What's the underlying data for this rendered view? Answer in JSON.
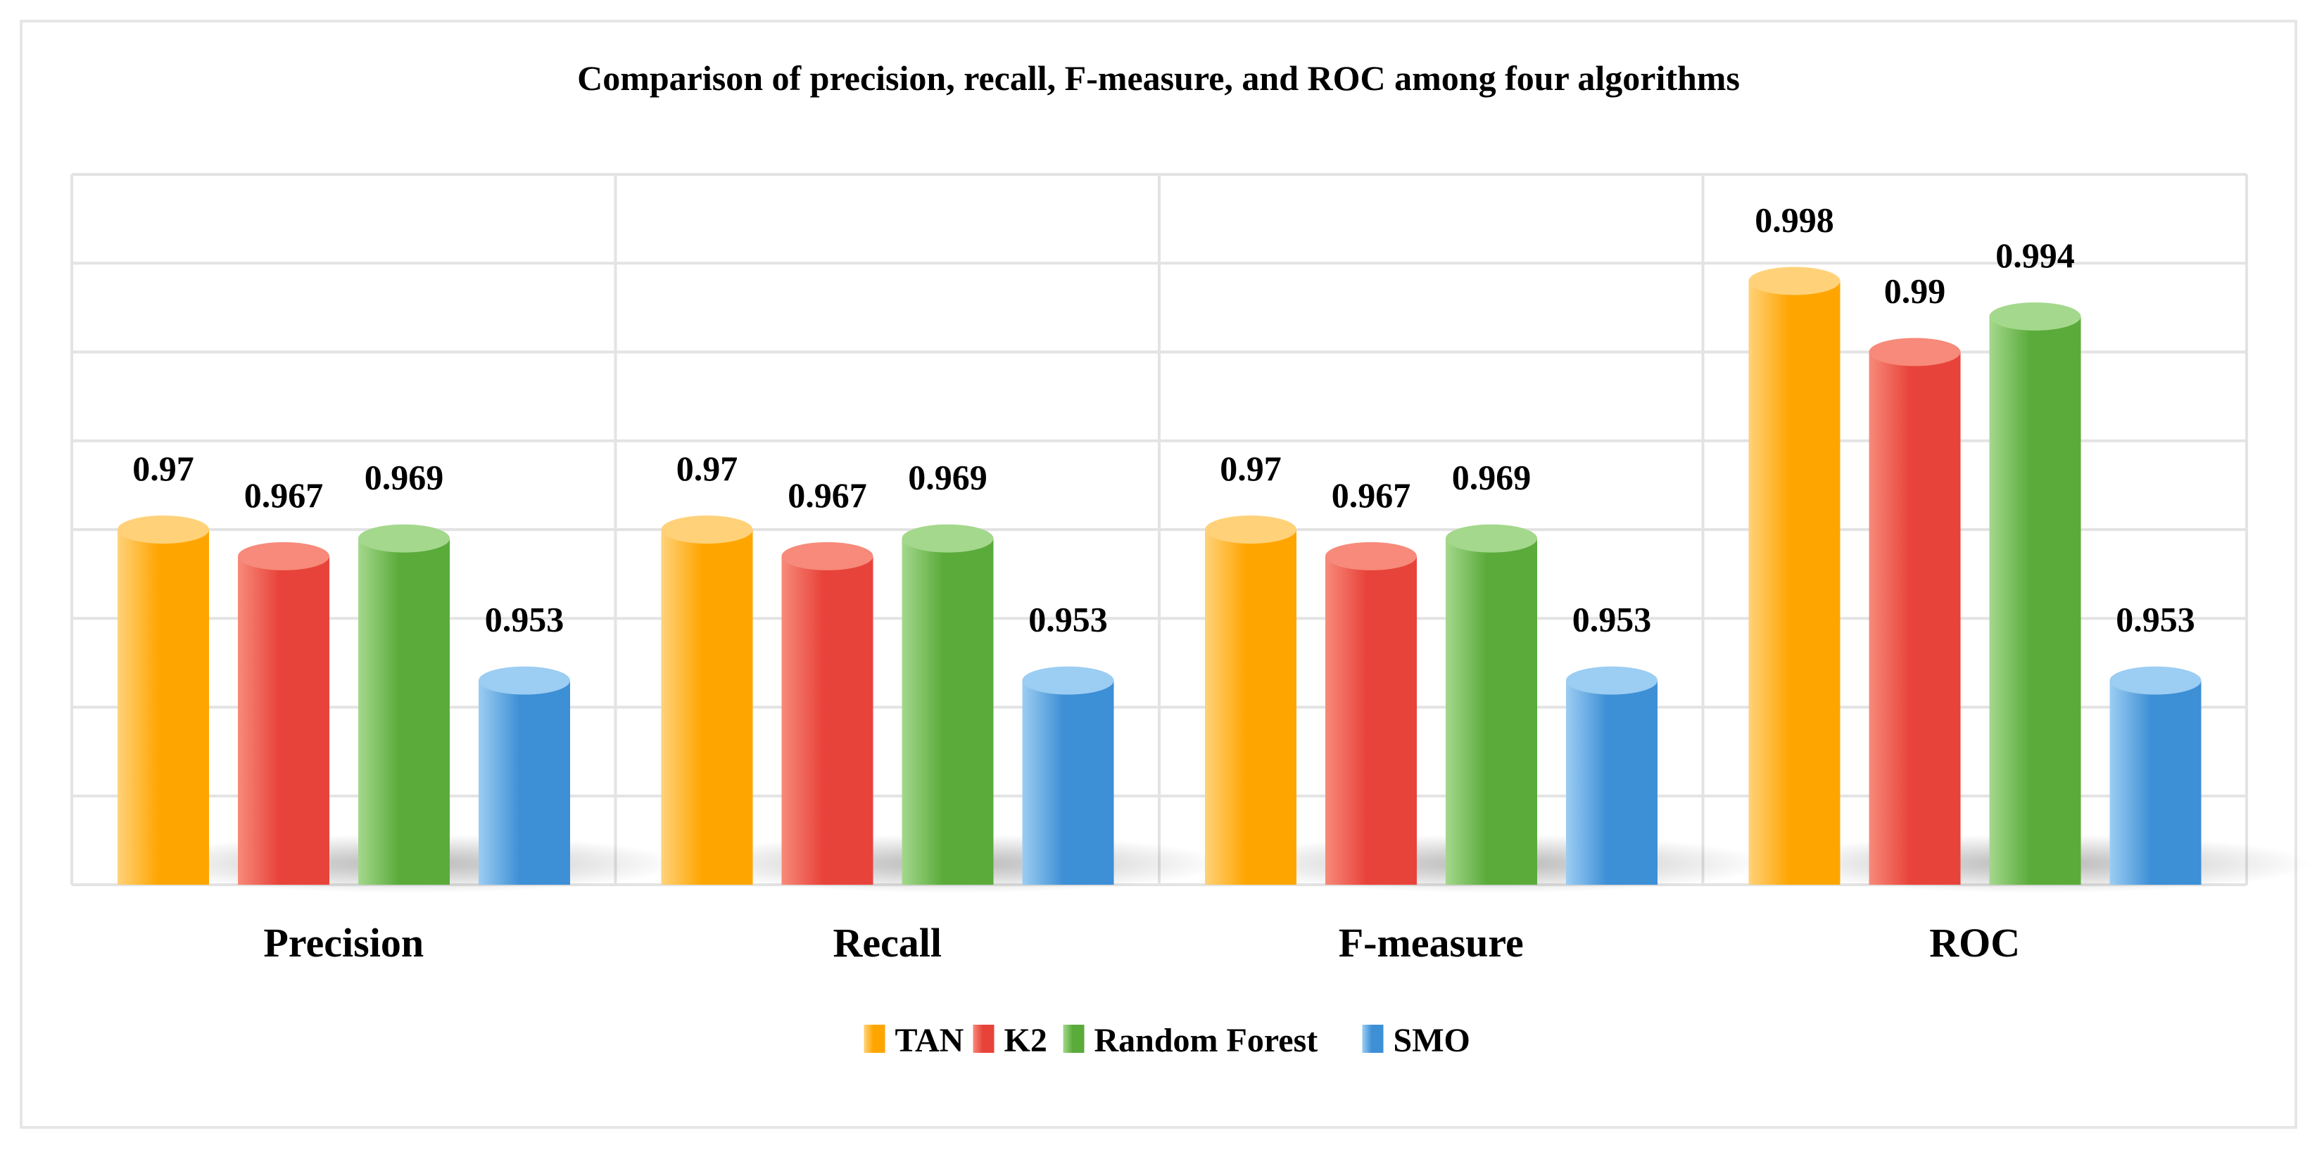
{
  "chart_data": {
    "type": "bar",
    "title": "Comparison of precision, recall, F-measure, and ROC among four algorithms",
    "xlabel": "",
    "ylabel": "",
    "categories": [
      "Precision",
      "Recall",
      "F-measure",
      "ROC"
    ],
    "series": [
      {
        "name": "TAN",
        "values": [
          0.97,
          0.97,
          0.97,
          0.998
        ],
        "color": "#ffa500",
        "light": "#ffd27a"
      },
      {
        "name": "K2",
        "values": [
          0.967,
          0.967,
          0.967,
          0.99
        ],
        "color": "#e8433a",
        "light": "#f78a7a"
      },
      {
        "name": "Random Forest",
        "values": [
          0.969,
          0.969,
          0.969,
          0.994
        ],
        "color": "#5aab3a",
        "light": "#a4d88c"
      },
      {
        "name": "SMO",
        "values": [
          0.953,
          0.953,
          0.953,
          0.953
        ],
        "color": "#3d8fd6",
        "light": "#9ccdf2"
      }
    ],
    "ylim": [
      0.93,
      1.01
    ],
    "grid": true,
    "legend_position": "bottom"
  }
}
